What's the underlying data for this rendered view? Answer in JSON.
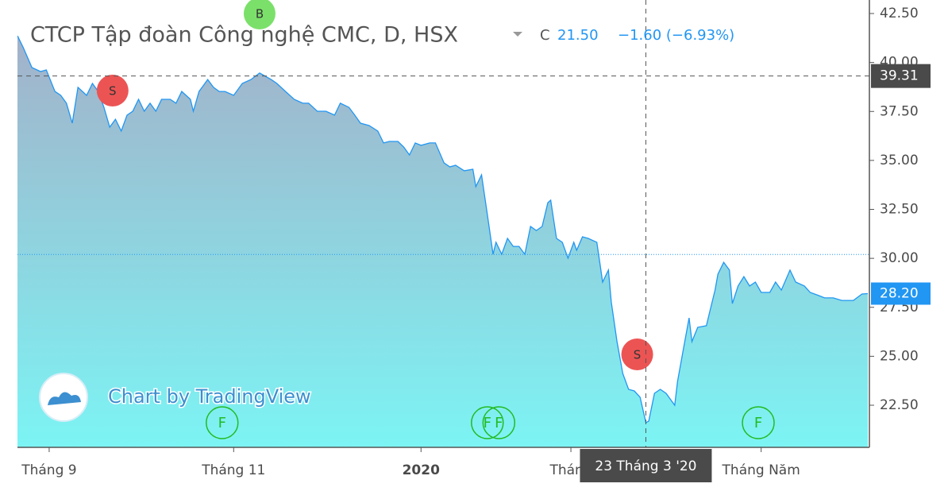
{
  "chart_data": {
    "type": "area",
    "title": "CTCP Tập đoàn Công nghệ CMC, D, HSX",
    "close_label": "C",
    "close": "21.50",
    "change": "−1.60 (−6.93%)",
    "watermark": "Chart by TradingView",
    "color": "#2196f3",
    "x": [
      0,
      2,
      5,
      8,
      10,
      13,
      15,
      17,
      19,
      21,
      24,
      26,
      28,
      30,
      32,
      34,
      36,
      38,
      40,
      42,
      44,
      46,
      48,
      50,
      53,
      55,
      57,
      60,
      61,
      63,
      66,
      68,
      70,
      72,
      75,
      78,
      81,
      84,
      88,
      90,
      93,
      96,
      99,
      101,
      104,
      107,
      110,
      112,
      115,
      117,
      119,
      122,
      125,
      127,
      129,
      132,
      134,
      136,
      138,
      140,
      143,
      145,
      148,
      150,
      152,
      155,
      158,
      159,
      161,
      163,
      165,
      166,
      168,
      170,
      172,
      174,
      176,
      178,
      180,
      182,
      184,
      185,
      187,
      189,
      191,
      193,
      194,
      196,
      198,
      201,
      202,
      203,
      205,
      206,
      208,
      210,
      212,
      214,
      216,
      218,
      219,
      221,
      223,
      225,
      228,
      229,
      231,
      233,
      234,
      236,
      239,
      240,
      242,
      243,
      245,
      247,
      248,
      250,
      252,
      254,
      256,
      258,
      261,
      263,
      265,
      268,
      270,
      273,
      275,
      278,
      280,
      283,
      286,
      290,
      293,
      295
    ],
    "values": [
      41.36,
      40.76,
      39.74,
      39.54,
      39.62,
      38.52,
      38.32,
      37.92,
      36.9,
      38.73,
      38.32,
      38.93,
      38.52,
      37.71,
      36.7,
      37.1,
      36.5,
      37.31,
      37.51,
      38.12,
      37.51,
      37.92,
      37.51,
      38.12,
      38.12,
      37.92,
      38.52,
      38.12,
      37.51,
      38.52,
      39.13,
      38.73,
      38.52,
      38.52,
      38.32,
      38.93,
      39.13,
      39.46,
      39.13,
      38.93,
      38.52,
      38.12,
      37.92,
      37.92,
      37.51,
      37.51,
      37.31,
      37.92,
      37.71,
      37.31,
      36.9,
      36.78,
      36.5,
      35.89,
      35.97,
      35.97,
      35.68,
      35.28,
      35.89,
      35.77,
      35.89,
      35.89,
      34.87,
      34.67,
      34.75,
      34.47,
      34.55,
      33.66,
      34.26,
      32.24,
      30.21,
      30.82,
      30.21,
      31.02,
      30.61,
      30.61,
      30.21,
      31.63,
      31.42,
      31.63,
      32.84,
      32.97,
      31.02,
      30.82,
      30.01,
      30.82,
      30.41,
      31.1,
      31.02,
      30.82,
      29.8,
      28.79,
      29.4,
      27.77,
      25.75,
      24.12,
      23.31,
      23.23,
      22.91,
      21.61,
      21.69,
      23.11,
      23.31,
      23.11,
      22.5,
      23.72,
      25.34,
      26.96,
      25.75,
      26.48,
      26.56,
      27.17,
      28.38,
      29.19,
      29.8,
      29.4,
      27.69,
      28.59,
      29.07,
      28.59,
      28.79,
      28.26,
      28.26,
      28.79,
      28.38,
      29.4,
      28.79,
      28.59,
      28.26,
      28.1,
      27.98,
      27.98,
      27.85,
      27.85,
      28.18,
      28.2
    ],
    "xlim": [
      0,
      295
    ],
    "ylim": [
      20.35,
      43.19
    ],
    "xticks": [
      {
        "value": 11,
        "label": "Tháng 9"
      },
      {
        "value": 75,
        "label": "Tháng 11"
      },
      {
        "value": 140,
        "label": "2020"
      },
      {
        "value": 192,
        "label": "Tháng"
      },
      {
        "value": 258,
        "label": "Tháng Năm"
      }
    ],
    "yticks": [
      {
        "value": 22.5,
        "label": "22.50"
      },
      {
        "value": 25,
        "label": "25.00"
      },
      {
        "value": 27.5,
        "label": "27.50"
      },
      {
        "value": 30,
        "label": "30.00"
      },
      {
        "value": 32.5,
        "label": "32.50"
      },
      {
        "value": 35,
        "label": "35.00"
      },
      {
        "value": 37.5,
        "label": "37.50"
      },
      {
        "value": 40,
        "label": "40.00"
      },
      {
        "value": 42.5,
        "label": "42.50"
      }
    ],
    "price_line": 30.2,
    "last_price": {
      "value": 28.2,
      "label": "28.20"
    },
    "crosshair_x": {
      "value": 218,
      "label": "23 Tháng 3 '20"
    },
    "crosshair_y": {
      "value": 39.31,
      "label": "39.31"
    },
    "events": [
      {
        "x": 33,
        "label": "S",
        "kind": "sell"
      },
      {
        "x": 84,
        "label": "B",
        "kind": "buy"
      },
      {
        "x": 215,
        "label": "S",
        "kind": "sell"
      },
      {
        "x": 71,
        "label": "F",
        "kind": "fund"
      },
      {
        "x": 163,
        "label": "F",
        "kind": "fund"
      },
      {
        "x": 167,
        "label": "F",
        "kind": "fund"
      },
      {
        "x": 257,
        "label": "F",
        "kind": "fund"
      }
    ]
  }
}
